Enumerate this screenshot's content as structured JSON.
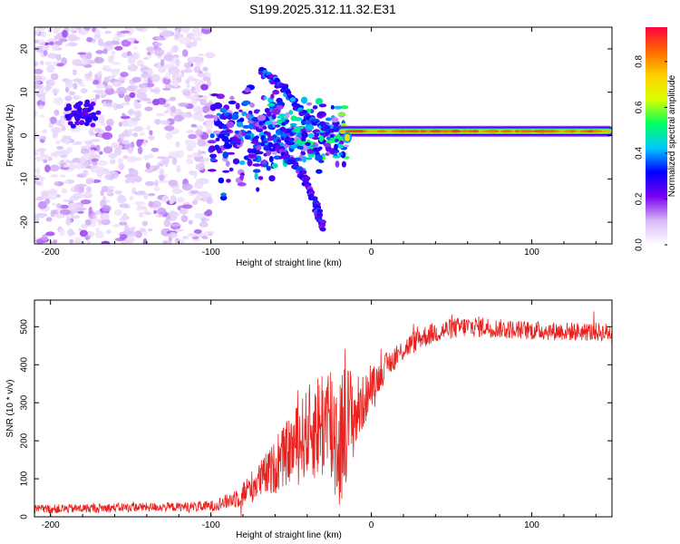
{
  "figure": {
    "title": "S199.2025.312.11.32.E31"
  },
  "chart_data": [
    {
      "type": "heatmap",
      "title": "",
      "xlabel": "Height of straight line (km)",
      "ylabel": "Frequency (Hz)",
      "xlim": [
        -210,
        150
      ],
      "ylim": [
        -25,
        25
      ],
      "xticks": [
        -200,
        -100,
        0,
        100
      ],
      "xtick_labels": [
        "-200",
        "-100",
        "0",
        "100"
      ],
      "yticks": [
        -20,
        -10,
        0,
        10,
        20
      ],
      "ytick_labels": [
        "-20",
        "-10",
        "0",
        "10",
        "20"
      ],
      "colorbar": {
        "label": "Normalized spectral amplitude",
        "range": [
          0,
          0.95
        ],
        "ticks": [
          0.0,
          0.2,
          0.4,
          0.6,
          0.8
        ],
        "tick_labels": [
          "0.0",
          "0.2",
          "0.4",
          "0.6",
          "0.8"
        ],
        "colormap": [
          "#ffffff",
          "#d8b8f8",
          "#7a00f0",
          "#0000ff",
          "#00c8ff",
          "#00ff60",
          "#d8ff00",
          "#ffd000",
          "#ff6a00",
          "#ff0040"
        ]
      },
      "features": [
        {
          "name": "dominant-band",
          "x_start": -20,
          "x_end": 150,
          "frequency": 1.0,
          "amplitude": 0.9
        },
        {
          "name": "low-amplitude-scatter",
          "x_start": -210,
          "x_end": -100,
          "freq_range": [
            -25,
            25
          ],
          "amplitude": 0.2
        },
        {
          "name": "upper-diagonal-branch",
          "points": [
            [
              -68,
              15
            ],
            [
              -55,
              11
            ],
            [
              -40,
              4
            ],
            [
              -25,
              1
            ]
          ],
          "amplitude": 0.35
        },
        {
          "name": "lower-diagonal-branch",
          "points": [
            [
              -60,
              -2
            ],
            [
              -45,
              -8
            ],
            [
              -35,
              -15
            ],
            [
              -30,
              -22
            ]
          ],
          "amplitude": 0.3
        }
      ]
    },
    {
      "type": "line",
      "title": "",
      "xlabel": "Height of straight line (km)",
      "ylabel": "SNR (10 * v/v)",
      "xlim": [
        -210,
        150
      ],
      "ylim": [
        0,
        570
      ],
      "xticks": [
        -200,
        -100,
        0,
        100
      ],
      "xtick_labels": [
        "-200",
        "-100",
        "0",
        "100"
      ],
      "yticks": [
        0,
        100,
        200,
        300,
        400,
        500
      ],
      "ytick_labels": [
        "0",
        "100",
        "200",
        "300",
        "400",
        "500"
      ],
      "color": "#e8221e",
      "series": [
        {
          "name": "SNR",
          "x": [
            -210,
            -180,
            -150,
            -120,
            -100,
            -90,
            -80,
            -70,
            -60,
            -50,
            -40,
            -30,
            -25,
            -20,
            -15,
            -10,
            -5,
            0,
            5,
            10,
            20,
            30,
            40,
            50,
            60,
            70,
            80,
            100,
            120,
            150
          ],
          "y": [
            20,
            22,
            25,
            26,
            28,
            40,
            60,
            95,
            130,
            180,
            220,
            250,
            240,
            200,
            260,
            270,
            300,
            340,
            370,
            400,
            440,
            470,
            485,
            495,
            500,
            500,
            495,
            490,
            488,
            485
          ],
          "noise_amplitude": [
            12,
            12,
            12,
            12,
            15,
            20,
            35,
            50,
            70,
            90,
            120,
            160,
            190,
            200,
            150,
            110,
            70,
            50,
            40,
            35,
            30,
            30,
            28,
            28,
            28,
            28,
            25,
            25,
            25,
            25
          ]
        }
      ]
    }
  ]
}
